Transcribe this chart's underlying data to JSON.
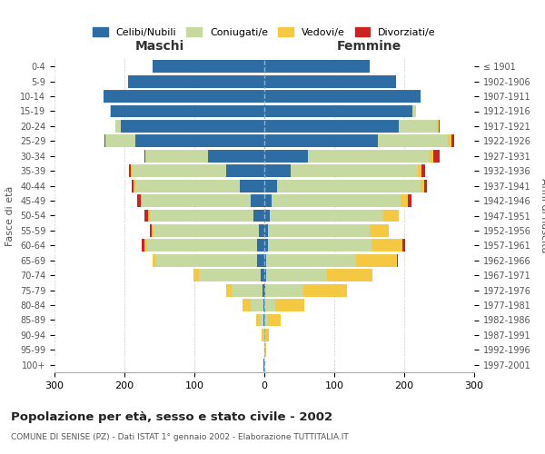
{
  "title": "Popolazione per età, sesso e stato civile - 2002",
  "subtitle": "COMUNE DI SENISE (PZ) - Dati ISTAT 1° gennaio 2002 - Elaborazione TUTTITALIA.IT",
  "ylabel_left": "Fasce di età",
  "ylabel_right": "Anni di nascita",
  "header_left": "Maschi",
  "header_right": "Femmine",
  "age_groups": [
    "0-4",
    "5-9",
    "10-14",
    "15-19",
    "20-24",
    "25-29",
    "30-34",
    "35-39",
    "40-44",
    "45-49",
    "50-54",
    "55-59",
    "60-64",
    "65-69",
    "70-74",
    "75-79",
    "80-84",
    "85-89",
    "90-94",
    "95-99",
    "100+"
  ],
  "birth_years": [
    "1997-2001",
    "1992-1996",
    "1987-1991",
    "1982-1986",
    "1977-1981",
    "1972-1976",
    "1967-1971",
    "1962-1966",
    "1957-1961",
    "1952-1956",
    "1947-1951",
    "1942-1946",
    "1937-1941",
    "1932-1936",
    "1927-1931",
    "1922-1926",
    "1917-1921",
    "1912-1916",
    "1907-1911",
    "1902-1906",
    "≤ 1901"
  ],
  "colors": {
    "celibe": "#2e6da4",
    "coniugato": "#c5d9a0",
    "vedovo": "#f5c842",
    "divorziato": "#cc2222"
  },
  "legend_labels": [
    "Celibi/Nubili",
    "Coniugati/e",
    "Vedovi/e",
    "Divorziati/e"
  ],
  "males": {
    "celibe": [
      160,
      195,
      230,
      220,
      205,
      185,
      80,
      55,
      35,
      20,
      15,
      8,
      10,
      10,
      5,
      2,
      1,
      1,
      0,
      0,
      1
    ],
    "coniugato": [
      0,
      0,
      0,
      1,
      8,
      42,
      90,
      135,
      150,
      155,
      148,
      150,
      158,
      145,
      88,
      45,
      18,
      5,
      2,
      0,
      0
    ],
    "vedovo": [
      0,
      0,
      0,
      0,
      0,
      0,
      0,
      1,
      2,
      2,
      3,
      3,
      4,
      5,
      8,
      8,
      12,
      6,
      2,
      0,
      0
    ],
    "divorziato": [
      0,
      0,
      0,
      0,
      0,
      2,
      2,
      2,
      3,
      5,
      5,
      3,
      3,
      0,
      0,
      0,
      0,
      0,
      0,
      0,
      0
    ]
  },
  "females": {
    "nubile": [
      150,
      188,
      223,
      212,
      192,
      162,
      62,
      38,
      18,
      10,
      8,
      5,
      5,
      3,
      2,
      1,
      0,
      0,
      0,
      0,
      0
    ],
    "coniugata": [
      0,
      0,
      1,
      5,
      55,
      100,
      175,
      182,
      205,
      185,
      162,
      145,
      148,
      128,
      88,
      55,
      15,
      5,
      1,
      0,
      0
    ],
    "vedova": [
      0,
      0,
      0,
      0,
      2,
      5,
      5,
      5,
      5,
      10,
      22,
      28,
      45,
      58,
      65,
      62,
      42,
      18,
      5,
      2,
      0
    ],
    "divorziata": [
      0,
      0,
      0,
      0,
      2,
      5,
      8,
      5,
      5,
      5,
      0,
      0,
      3,
      2,
      0,
      0,
      0,
      0,
      0,
      0,
      0
    ]
  },
  "xlim": 300,
  "background_color": "#ffffff",
  "grid_color": "#cccccc",
  "bar_height": 0.85
}
